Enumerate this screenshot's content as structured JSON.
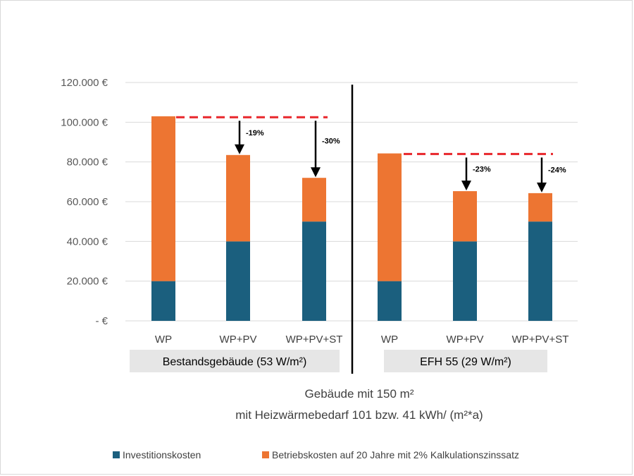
{
  "chart_data": {
    "type": "bar",
    "stacked": true,
    "categories": [
      "WP",
      "WP+PV",
      "WP+PV+ST",
      "WP",
      "WP+PV",
      "WP+PV+ST"
    ],
    "groups": [
      {
        "label": "Bestandsgebäude (53 W/m²)",
        "categories": [
          0,
          1,
          2
        ]
      },
      {
        "label": "EFH 55 (29 W/m²)",
        "categories": [
          3,
          4,
          5
        ]
      }
    ],
    "series": [
      {
        "name": "Investitionskosten",
        "color": "#1B5F7E",
        "values": [
          20000,
          40000,
          50000,
          20000,
          40000,
          50000
        ]
      },
      {
        "name": "Betriebskosten auf 20 Jahre mit 2% Kalkulationszinssatz",
        "color": "#ED7532",
        "values": [
          83000,
          43500,
          22000,
          64300,
          25300,
          14300
        ]
      }
    ],
    "y_ticks": [
      "-  €",
      "20.000 €",
      "40.000 €",
      "60.000 €",
      "80.000 €",
      "100.000 €",
      "120.000 €"
    ],
    "ylim": [
      0,
      120000
    ],
    "grid": true,
    "reference_lines": [
      {
        "group": 0,
        "value": 102500,
        "color": "#E8262B"
      },
      {
        "group": 1,
        "value": 84000,
        "color": "#E8262B"
      }
    ],
    "annotations": [
      {
        "category": 1,
        "label": "-19%"
      },
      {
        "category": 2,
        "label": "-30%"
      },
      {
        "category": 4,
        "label": "-23%"
      },
      {
        "category": 5,
        "label": "-24%"
      }
    ],
    "xlabel_lines": [
      "Gebäude mit 150 m²",
      "mit Heizwärmebedarf 101 bzw. 41 kWh/ (m²*a)"
    ],
    "legend_position": "bottom"
  }
}
